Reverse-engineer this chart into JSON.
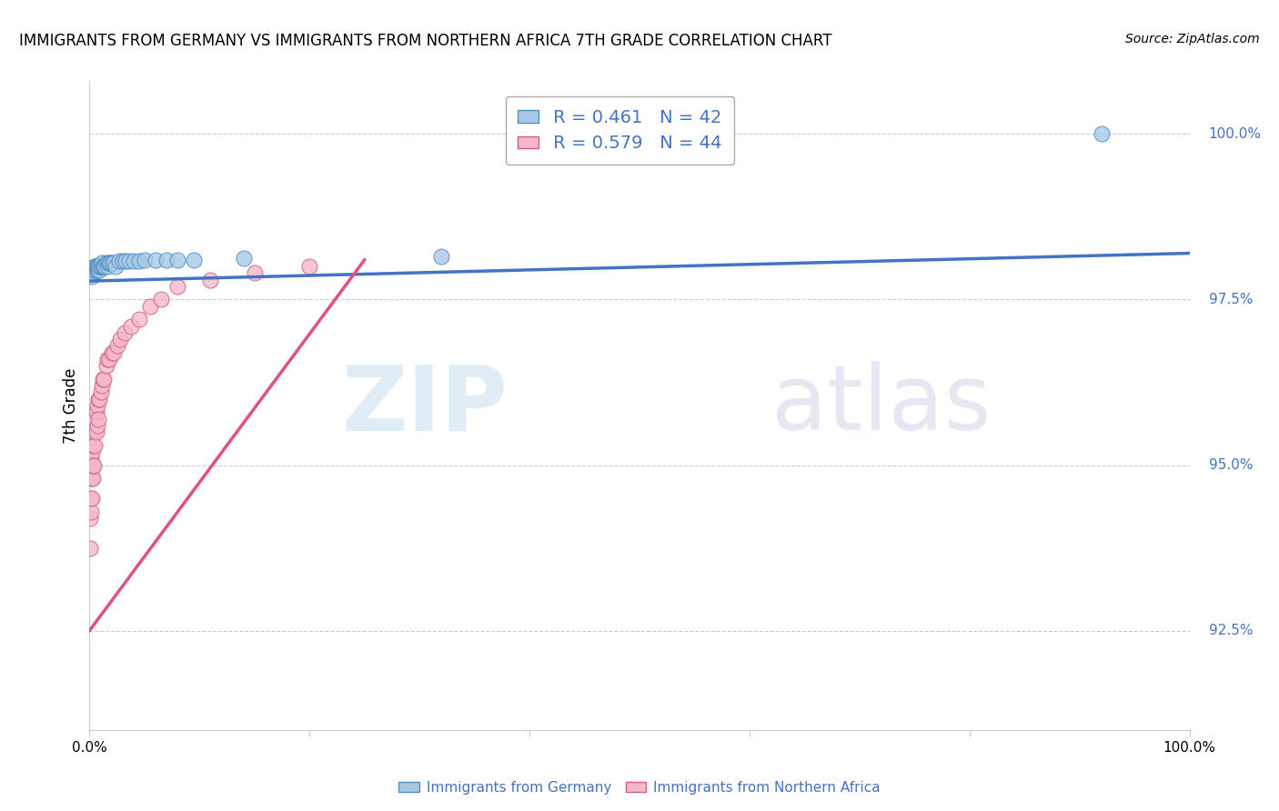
{
  "title": "IMMIGRANTS FROM GERMANY VS IMMIGRANTS FROM NORTHERN AFRICA 7TH GRADE CORRELATION CHART",
  "source": "Source: ZipAtlas.com",
  "ylabel": "7th Grade",
  "right_ytick_vals": [
    0.925,
    0.95,
    0.975,
    1.0
  ],
  "right_ytick_labels": [
    "92.5%",
    "95.0%",
    "97.5%",
    "100.0%"
  ],
  "blue_R": 0.461,
  "blue_N": 42,
  "pink_R": 0.579,
  "pink_N": 44,
  "blue_color": "#a8c8e8",
  "pink_color": "#f4b8c8",
  "blue_edge_color": "#5090c0",
  "pink_edge_color": "#d06080",
  "blue_line_color": "#4472C4",
  "pink_line_color": "#E05080",
  "legend_blue_label": "Immigrants from Germany",
  "legend_pink_label": "Immigrants from Northern Africa",
  "watermark_zip": "ZIP",
  "watermark_atlas": "atlas",
  "xlim": [
    0.0,
    1.0
  ],
  "ylim": [
    0.91,
    1.008
  ],
  "blue_scatter_x": [
    0.001,
    0.002,
    0.003,
    0.004,
    0.005,
    0.005,
    0.006,
    0.006,
    0.007,
    0.007,
    0.008,
    0.008,
    0.009,
    0.009,
    0.01,
    0.01,
    0.011,
    0.012,
    0.013,
    0.014,
    0.015,
    0.016,
    0.017,
    0.018,
    0.019,
    0.02,
    0.022,
    0.024,
    0.027,
    0.03,
    0.033,
    0.036,
    0.04,
    0.045,
    0.05,
    0.06,
    0.07,
    0.08,
    0.095,
    0.14,
    0.32,
    0.92
  ],
  "blue_scatter_y": [
    0.9795,
    0.9785,
    0.979,
    0.9795,
    0.98,
    0.98,
    0.9795,
    0.98,
    0.9795,
    0.98,
    0.98,
    0.98,
    0.9795,
    0.98,
    0.98,
    0.98,
    0.9805,
    0.98,
    0.98,
    0.98,
    0.9805,
    0.98,
    0.9805,
    0.9805,
    0.9805,
    0.9805,
    0.9805,
    0.98,
    0.9808,
    0.9808,
    0.9808,
    0.9808,
    0.9808,
    0.9808,
    0.981,
    0.981,
    0.981,
    0.981,
    0.981,
    0.9812,
    0.9815,
    1.0
  ],
  "pink_scatter_x": [
    0.0005,
    0.0005,
    0.001,
    0.001,
    0.001,
    0.001,
    0.002,
    0.002,
    0.002,
    0.002,
    0.003,
    0.003,
    0.003,
    0.004,
    0.004,
    0.005,
    0.005,
    0.006,
    0.006,
    0.007,
    0.007,
    0.008,
    0.008,
    0.009,
    0.01,
    0.011,
    0.012,
    0.013,
    0.015,
    0.016,
    0.018,
    0.02,
    0.022,
    0.025,
    0.028,
    0.032,
    0.038,
    0.045,
    0.055,
    0.065,
    0.08,
    0.11,
    0.15,
    0.2
  ],
  "pink_scatter_y": [
    0.9375,
    0.942,
    0.943,
    0.945,
    0.948,
    0.951,
    0.945,
    0.948,
    0.95,
    0.952,
    0.948,
    0.95,
    0.953,
    0.95,
    0.955,
    0.953,
    0.957,
    0.955,
    0.958,
    0.956,
    0.959,
    0.957,
    0.96,
    0.96,
    0.961,
    0.962,
    0.963,
    0.963,
    0.965,
    0.966,
    0.966,
    0.967,
    0.967,
    0.968,
    0.969,
    0.97,
    0.971,
    0.972,
    0.974,
    0.975,
    0.977,
    0.978,
    0.979,
    0.98
  ],
  "blue_trend_x0": 0.0,
  "blue_trend_x1": 1.0,
  "blue_trend_y0": 0.9778,
  "blue_trend_y1": 0.982,
  "pink_trend_x0": 0.0,
  "pink_trend_x1": 0.25,
  "pink_trend_y0": 0.925,
  "pink_trend_y1": 0.981,
  "grid_color": "#cccccc",
  "text_color_blue": "#4472C4",
  "label_fontsize": 11,
  "title_fontsize": 12
}
